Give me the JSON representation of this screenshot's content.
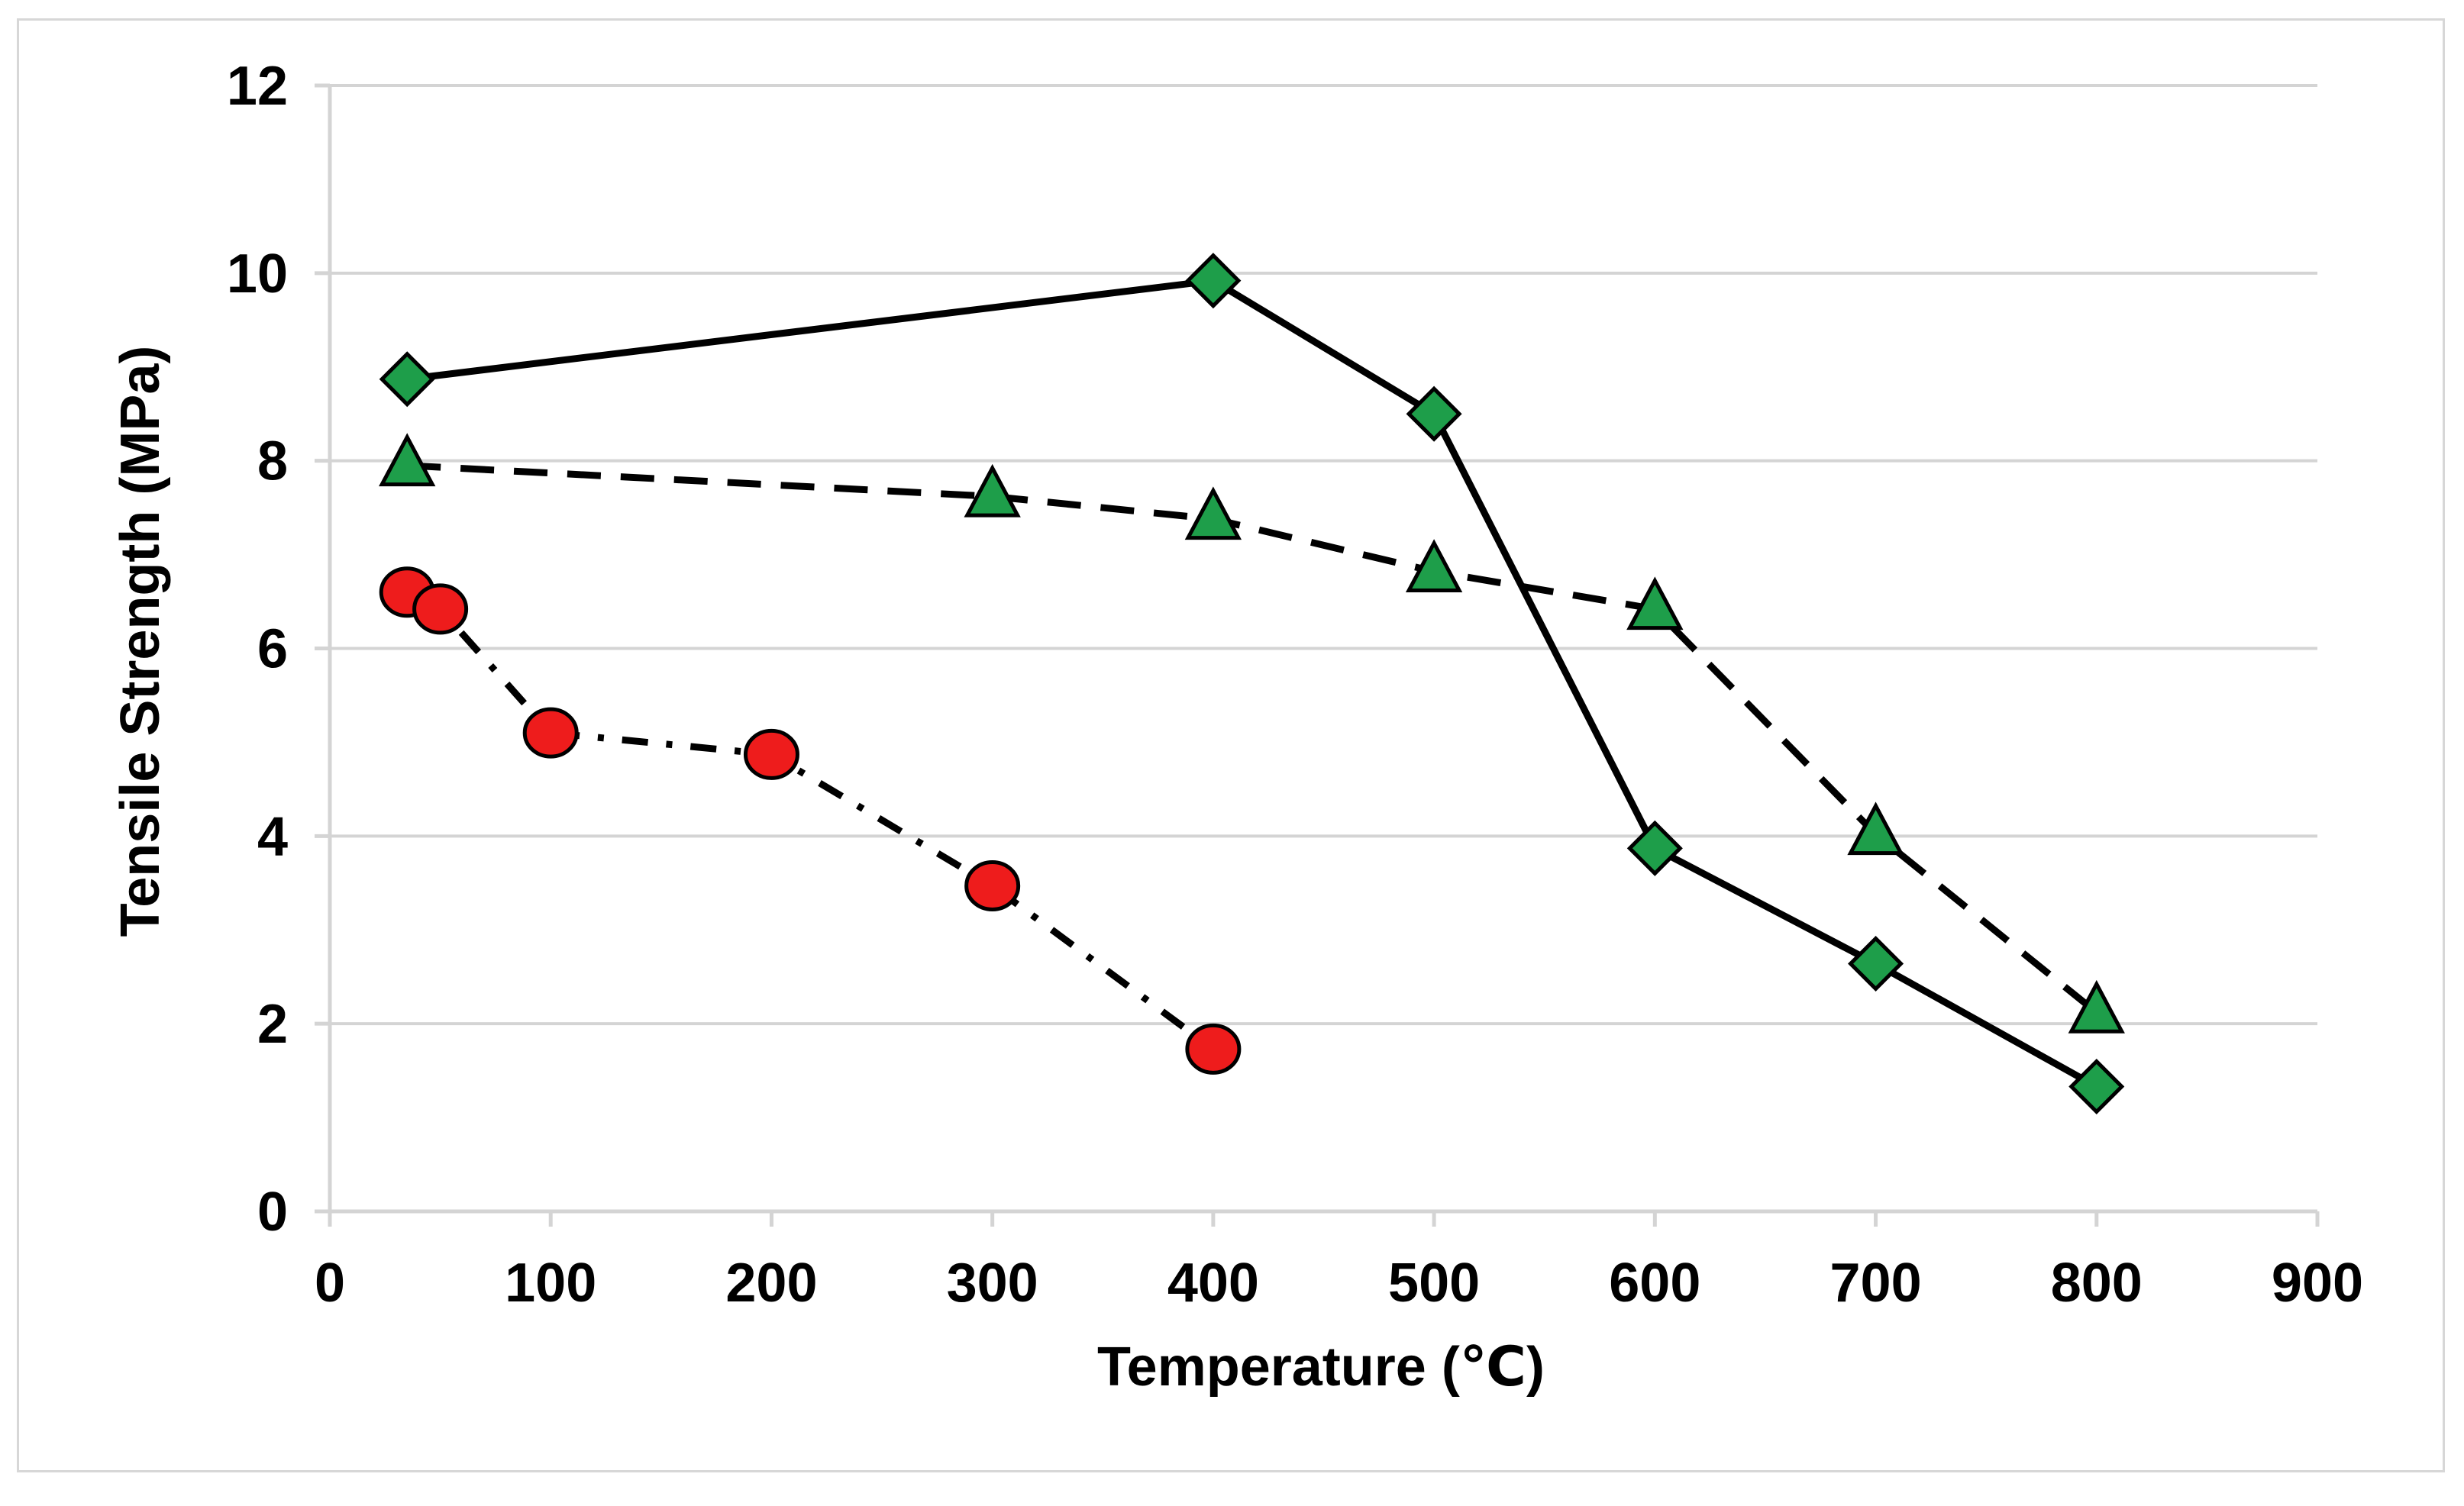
{
  "chart_data": {
    "type": "line",
    "title": "",
    "xlabel": "Temperature (℃)",
    "ylabel": "Tensile Strength (MPa)",
    "xlim": [
      0,
      900
    ],
    "ylim": [
      0,
      12
    ],
    "xticks": [
      0,
      100,
      200,
      300,
      400,
      500,
      600,
      700,
      800,
      900
    ],
    "yticks": [
      0,
      2,
      4,
      6,
      8,
      10,
      12
    ],
    "xtick_labels": [
      "0",
      "100",
      "200",
      "300",
      "400",
      "500",
      "600",
      "700",
      "800",
      "900"
    ],
    "ytick_labels": [
      "0",
      "2",
      "4",
      "6",
      "8",
      "10",
      "12"
    ],
    "grid": "horizontal",
    "legend": "none",
    "series": [
      {
        "name": "diamond-series",
        "marker": "diamond",
        "line_style": "solid",
        "marker_color": "#1e9e4a",
        "x": [
          35,
          400,
          500,
          600,
          700,
          800
        ],
        "y": [
          8.87,
          9.92,
          8.5,
          3.87,
          2.64,
          1.33
        ]
      },
      {
        "name": "triangle-series",
        "marker": "triangle",
        "line_style": "dashed",
        "marker_color": "#1e9e4a",
        "x": [
          35,
          300,
          400,
          500,
          600,
          700,
          800
        ],
        "y": [
          7.95,
          7.62,
          7.38,
          6.82,
          6.42,
          4.02,
          2.12
        ]
      },
      {
        "name": "circle-series",
        "marker": "circle",
        "line_style": "dash-dot",
        "marker_color": "#ee1c1c",
        "x": [
          35,
          50,
          100,
          200,
          300,
          400
        ],
        "y": [
          6.6,
          6.42,
          5.1,
          4.87,
          3.47,
          1.73
        ]
      }
    ]
  }
}
